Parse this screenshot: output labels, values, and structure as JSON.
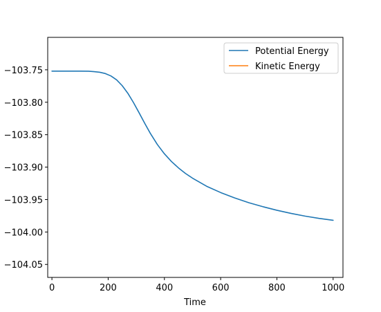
{
  "chart_data": {
    "type": "line",
    "title": "",
    "xlabel": "Time",
    "ylabel": "",
    "xlim": [
      -15,
      1035
    ],
    "ylim": [
      -104.07,
      -103.7
    ],
    "xticks": [
      0,
      200,
      400,
      600,
      800,
      1000
    ],
    "xtick_labels": [
      "0",
      "200",
      "400",
      "600",
      "800",
      "1000"
    ],
    "yticks": [
      -103.75,
      -103.8,
      -103.85,
      -103.9,
      -103.95,
      -104.0,
      -104.05
    ],
    "ytick_labels": [
      "−103.75",
      "−103.80",
      "−103.85",
      "−103.90",
      "−103.95",
      "−104.00",
      "−104.05"
    ],
    "grid": false,
    "legend_position": "top-right",
    "series": [
      {
        "name": "Potential Energy",
        "color": "#1f77b4",
        "x": [
          0,
          50,
          100,
          130,
          150,
          170,
          190,
          210,
          230,
          250,
          270,
          290,
          310,
          330,
          350,
          375,
          400,
          425,
          450,
          475,
          500,
          550,
          600,
          650,
          700,
          750,
          800,
          850,
          900,
          950,
          1000
        ],
        "y": [
          -103.752,
          -103.752,
          -103.752,
          -103.7522,
          -103.7528,
          -103.7538,
          -103.7558,
          -103.7595,
          -103.7655,
          -103.7745,
          -103.7862,
          -103.8005,
          -103.8163,
          -103.8325,
          -103.848,
          -103.8652,
          -103.8795,
          -103.8913,
          -103.9012,
          -103.9098,
          -103.917,
          -103.9295,
          -103.9392,
          -103.9475,
          -103.9548,
          -103.961,
          -103.9665,
          -103.9713,
          -103.9755,
          -103.979,
          -103.982
        ]
      },
      {
        "name": "Kinetic Energy",
        "color": "#ff7f0e",
        "x": [],
        "y": []
      }
    ]
  }
}
